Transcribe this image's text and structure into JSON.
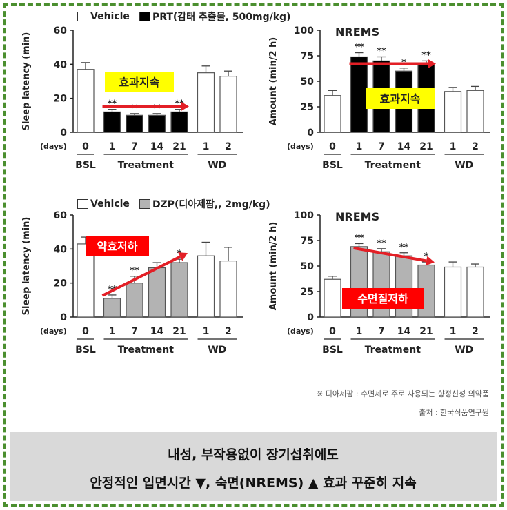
{
  "legend_top": {
    "vehicle": "Vehicle",
    "drug": "PRT(감태 추출물, 500mg/kg)"
  },
  "legend_bottom": {
    "vehicle": "Vehicle",
    "drug": "DZP(디아제팜,, 2mg/kg)"
  },
  "colors": {
    "frame": "#4b8f2f",
    "prt_fill": "#000000",
    "dzp_fill": "#b3b3b3",
    "arrow": "#e31f26",
    "label_yellow": "#ffff00",
    "label_red": "#ff0000",
    "footer_bg": "#d9d9d9"
  },
  "chart_data": [
    {
      "type": "bar",
      "ylabel": "Sleep latency (min)",
      "ylim": [
        0,
        60
      ],
      "yticks": [
        "0",
        "20",
        "40",
        "60"
      ],
      "x_prefix": "(days)",
      "categories": [
        "0",
        "1",
        "7",
        "14",
        "21",
        "1",
        "2"
      ],
      "groups": [
        "BSL",
        "Treatment",
        "WD"
      ],
      "values": [
        37,
        12,
        10,
        10,
        12,
        35,
        33
      ],
      "errors": [
        4,
        1.5,
        1,
        1,
        1.5,
        4,
        3
      ],
      "fills": [
        "vehicle",
        "drug",
        "drug",
        "drug",
        "drug",
        "vehicle",
        "vehicle"
      ],
      "annotations": [
        "",
        "**",
        "**",
        "**",
        "**",
        "",
        ""
      ],
      "label": "효과지속",
      "label_style": "yellow",
      "arrow": "flat"
    },
    {
      "type": "bar",
      "title": "NREMS",
      "ylabel": "Amount (min/2 h)",
      "ylim": [
        0,
        100
      ],
      "yticks": [
        "0",
        "25",
        "50",
        "75",
        "100"
      ],
      "x_prefix": "(days)",
      "categories": [
        "0",
        "1",
        "7",
        "14",
        "21",
        "1",
        "2"
      ],
      "groups": [
        "BSL",
        "Treatment",
        "WD"
      ],
      "values": [
        36,
        74,
        70,
        60,
        66,
        40,
        41
      ],
      "errors": [
        5,
        4,
        4,
        3,
        4,
        4,
        4
      ],
      "fills": [
        "vehicle",
        "drug",
        "drug",
        "drug",
        "drug",
        "vehicle",
        "vehicle"
      ],
      "annotations": [
        "",
        "**",
        "**",
        "*",
        "**",
        "",
        ""
      ],
      "label": "효과지속",
      "label_style": "yellow",
      "arrow": "flat"
    },
    {
      "type": "bar",
      "ylabel": "Sleep latency (min)",
      "ylim": [
        0,
        60
      ],
      "yticks": [
        "0",
        "20",
        "40",
        "60"
      ],
      "x_prefix": "(days)",
      "categories": [
        "0",
        "1",
        "7",
        "14",
        "21",
        "1",
        "2"
      ],
      "groups": [
        "BSL",
        "Treatment",
        "WD"
      ],
      "values": [
        43,
        11,
        20,
        29,
        32,
        36,
        33
      ],
      "errors": [
        4,
        2,
        4,
        3,
        2,
        8,
        8
      ],
      "fills": [
        "vehicle",
        "drug",
        "drug",
        "drug",
        "drug",
        "vehicle",
        "vehicle"
      ],
      "annotations": [
        "",
        "**",
        "**",
        "",
        "*",
        "",
        ""
      ],
      "label": "약효저하",
      "label_style": "red",
      "arrow": "up"
    },
    {
      "type": "bar",
      "title": "NREMS",
      "ylabel": "Amount (min/2 h)",
      "ylim": [
        0,
        100
      ],
      "yticks": [
        "0",
        "25",
        "50",
        "75",
        "100"
      ],
      "x_prefix": "(days)",
      "categories": [
        "0",
        "1",
        "7",
        "14",
        "21",
        "1",
        "2"
      ],
      "groups": [
        "BSL",
        "Treatment",
        "WD"
      ],
      "values": [
        37,
        69,
        64,
        60,
        51,
        49,
        49
      ],
      "errors": [
        3,
        3,
        3,
        3,
        3,
        5,
        3
      ],
      "fills": [
        "vehicle",
        "drug",
        "drug",
        "drug",
        "drug",
        "vehicle",
        "vehicle"
      ],
      "annotations": [
        "",
        "**",
        "**",
        "**",
        "*",
        "",
        ""
      ],
      "label": "수면질저하",
      "label_style": "red",
      "arrow": "down"
    }
  ],
  "note_line1": "※ 디아제팜 : 수면제로 주로 사용되는 향정신성 의약품",
  "note_line2": "출처 : 한국식품연구원",
  "footer_line1": "내성, 부작용없이 장기섭취에도",
  "footer_line2": "안정적인 입면시간 ▼, 숙면(NREMS) ▲ 효과 꾸준히 지속"
}
